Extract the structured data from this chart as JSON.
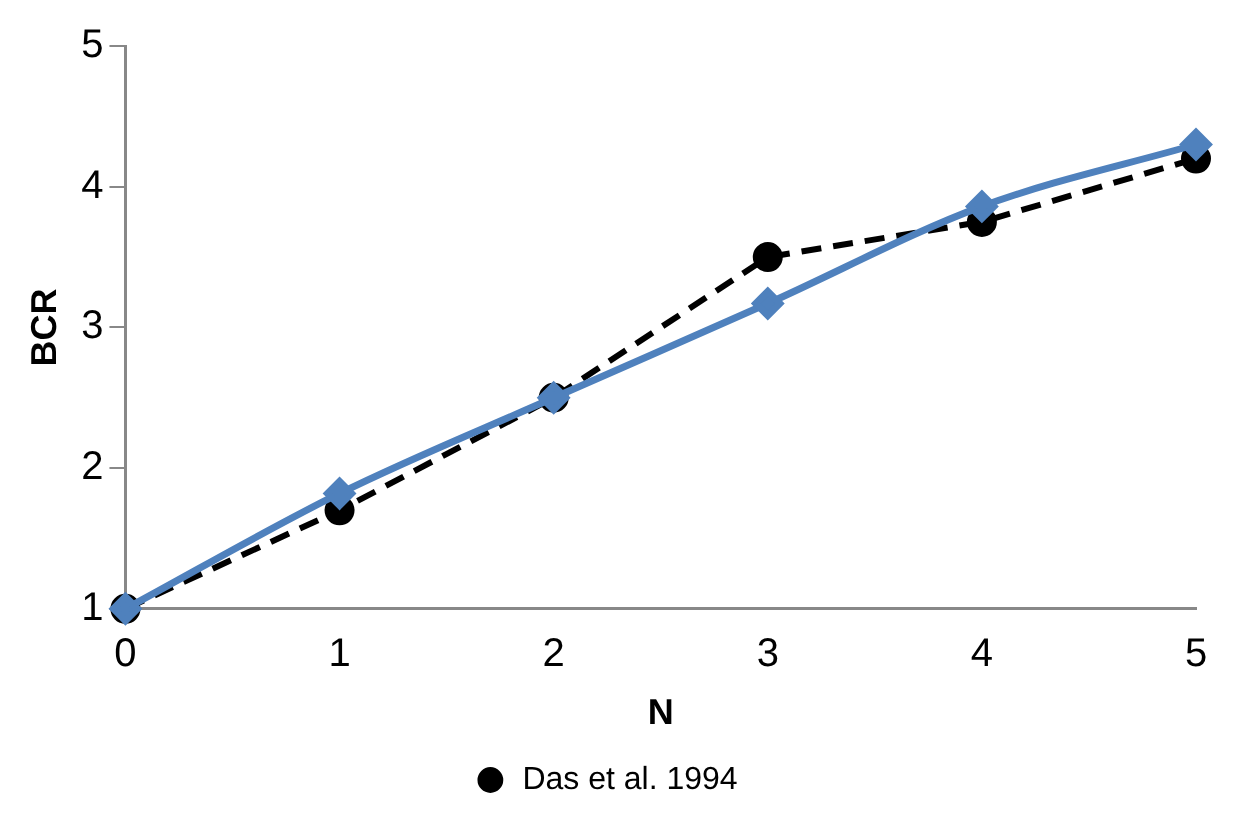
{
  "chart_data": {
    "type": "line",
    "xlabel": "N",
    "ylabel": "BCR",
    "x": [
      0,
      1,
      2,
      3,
      4,
      5
    ],
    "xlim": [
      0,
      5
    ],
    "xticks": [
      0,
      1,
      2,
      3,
      4,
      5
    ],
    "ylim": [
      1,
      5
    ],
    "yticks": [
      1,
      2,
      3,
      4,
      5
    ],
    "grid": false,
    "legend": "bottom",
    "series": [
      {
        "name": "Das et al. 1994",
        "color": "#000000",
        "values": [
          1,
          1.7,
          2.5,
          3.5,
          3.75,
          4.2
        ],
        "marker": "circle",
        "line_style": "dashed"
      },
      {
        "color": "#4f81bd",
        "values": [
          1,
          1.82,
          2.5,
          3.17,
          3.86,
          4.3
        ],
        "marker": "diamond",
        "line_style": "solid"
      }
    ]
  }
}
